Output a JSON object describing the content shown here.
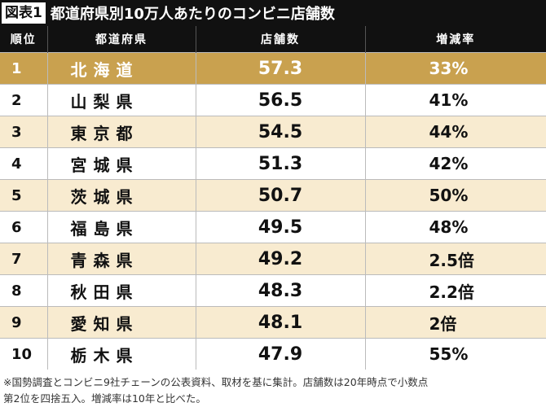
{
  "header": {
    "label": "図表1",
    "title": "都道府県別10万人あたりのコンビニ店舗数"
  },
  "table": {
    "columns": [
      "順位",
      "都道府県",
      "店舗数",
      "増減率"
    ],
    "rows": [
      [
        "1",
        "北海道",
        "57.3",
        "33%"
      ],
      [
        "2",
        "山梨県",
        "56.5",
        "41%"
      ],
      [
        "3",
        "東京都",
        "54.5",
        "44%"
      ],
      [
        "4",
        "宮城県",
        "51.3",
        "42%"
      ],
      [
        "5",
        "茨城県",
        "50.7",
        "50%"
      ],
      [
        "6",
        "福島県",
        "49.5",
        "48%"
      ],
      [
        "7",
        "青森県",
        "49.2",
        "2.5倍"
      ],
      [
        "8",
        "秋田県",
        "48.3",
        "2.2倍"
      ],
      [
        "9",
        "愛知県",
        "48.1",
        "2倍"
      ],
      [
        "10",
        "栃木県",
        "47.9",
        "55%"
      ]
    ]
  },
  "footnote": [
    "※国勢調査とコンビニ9社チェーンの公表資料、取材を基に集計。店舗数は20年時点で小数点",
    "第2位を四捨五入。増減率は10年と比べた。"
  ]
}
